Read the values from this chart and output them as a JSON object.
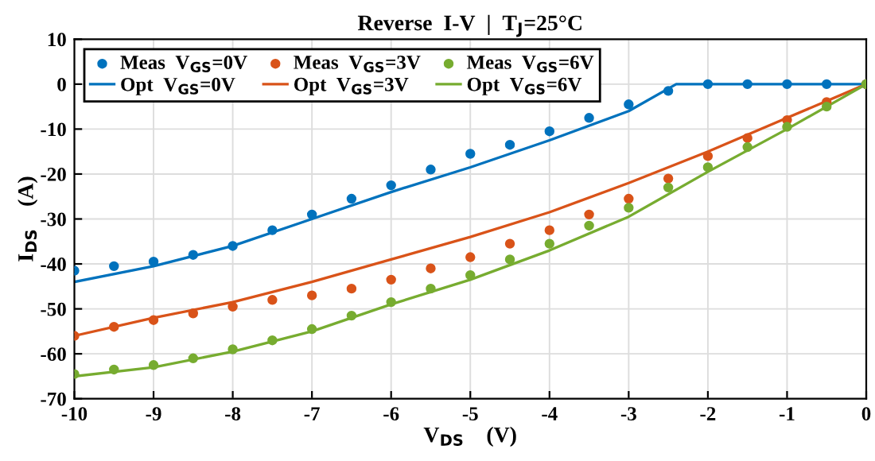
{
  "chart_data": {
    "type": "line",
    "title": "Reverse  I-V  |  T$_{J}$=25°C",
    "xlabel": "V$_{DS}$    (V)",
    "ylabel": "I$_{DS}$    (A)",
    "xlim": [
      -10,
      0
    ],
    "ylim": [
      -70,
      10
    ],
    "xticks": [
      -10,
      -9,
      -8,
      -7,
      -6,
      -5,
      -4,
      -3,
      -2,
      -1,
      0
    ],
    "yticks": [
      -70,
      -60,
      -50,
      -40,
      -30,
      -20,
      -10,
      0,
      10
    ],
    "grid": true,
    "legend": "top left",
    "series": [
      {
        "name": "Meas  V$_{GS}$=0V",
        "type": "scatter",
        "marker": "circle",
        "color": "#0072bd",
        "x": [
          -10,
          -9.5,
          -9,
          -8.5,
          -8,
          -7.5,
          -7,
          -6.5,
          -6,
          -5.5,
          -5,
          -4.5,
          -4,
          -3.5,
          -3,
          -2.5,
          -2,
          -1.5,
          -1,
          -0.5,
          0
        ],
        "values": [
          -41.5,
          -40.5,
          -39.5,
          -38,
          -36,
          -32.5,
          -29,
          -25.5,
          -22.5,
          -19,
          -15.5,
          -13.5,
          -10.5,
          -7.5,
          -4.5,
          -1.5,
          0,
          0,
          0,
          0,
          0
        ]
      },
      {
        "name": "Opt  V$_{GS}$=0V",
        "color": "#0072bd",
        "x": [
          -10,
          -9,
          -8,
          -7,
          -6,
          -5,
          -4,
          -3,
          -2.4,
          0
        ],
        "values": [
          -44,
          -40.5,
          -36,
          -30,
          -24,
          -18.5,
          -12.5,
          -6,
          0,
          0
        ]
      },
      {
        "name": "Meas  V$_{GS}$=3V",
        "type": "scatter",
        "marker": "circle",
        "color": "#d95319",
        "x": [
          -10,
          -9.5,
          -9,
          -8.5,
          -8,
          -7.5,
          -7,
          -6.5,
          -6,
          -5.5,
          -5,
          -4.5,
          -4,
          -3.5,
          -3,
          -2.5,
          -2,
          -1.5,
          -1,
          -0.5,
          0
        ],
        "values": [
          -56,
          -54,
          -52.5,
          -51,
          -49.5,
          -48,
          -47,
          -45.5,
          -43.5,
          -41,
          -38.5,
          -35.5,
          -32.5,
          -29,
          -25.5,
          -21,
          -16,
          -12,
          -8,
          -4,
          0
        ]
      },
      {
        "name": "Opt  V$_{GS}$=3V",
        "color": "#d95319",
        "x": [
          -10,
          -9,
          -8,
          -7,
          -6,
          -5,
          -4,
          -3,
          -2,
          -1,
          0
        ],
        "values": [
          -56,
          -52,
          -48.5,
          -44,
          -39,
          -34,
          -28.5,
          -22,
          -15,
          -7.5,
          0
        ]
      },
      {
        "name": "Meas  V$_{GS}$=6V",
        "type": "scatter",
        "marker": "circle",
        "color": "#77ac30",
        "x": [
          -10,
          -9.5,
          -9,
          -8.5,
          -8,
          -7.5,
          -7,
          -6.5,
          -6,
          -5.5,
          -5,
          -4.5,
          -4,
          -3.5,
          -3,
          -2.5,
          -2,
          -1.5,
          -1,
          -0.5,
          0
        ],
        "values": [
          -64.5,
          -63.5,
          -62.5,
          -61,
          -59,
          -57,
          -54.5,
          -51.5,
          -48.5,
          -45.5,
          -42.5,
          -39,
          -35.5,
          -31.5,
          -27.5,
          -23,
          -18.5,
          -14,
          -9.5,
          -5,
          0
        ]
      },
      {
        "name": "Opt  V$_{GS}$=6V",
        "color": "#77ac30",
        "x": [
          -10,
          -9,
          -8,
          -7,
          -6,
          -5,
          -4,
          -3,
          -2,
          -1,
          0
        ],
        "values": [
          -65,
          -63,
          -59.5,
          -55,
          -49,
          -43.5,
          -37,
          -29.5,
          -19.5,
          -10,
          0
        ]
      }
    ]
  }
}
